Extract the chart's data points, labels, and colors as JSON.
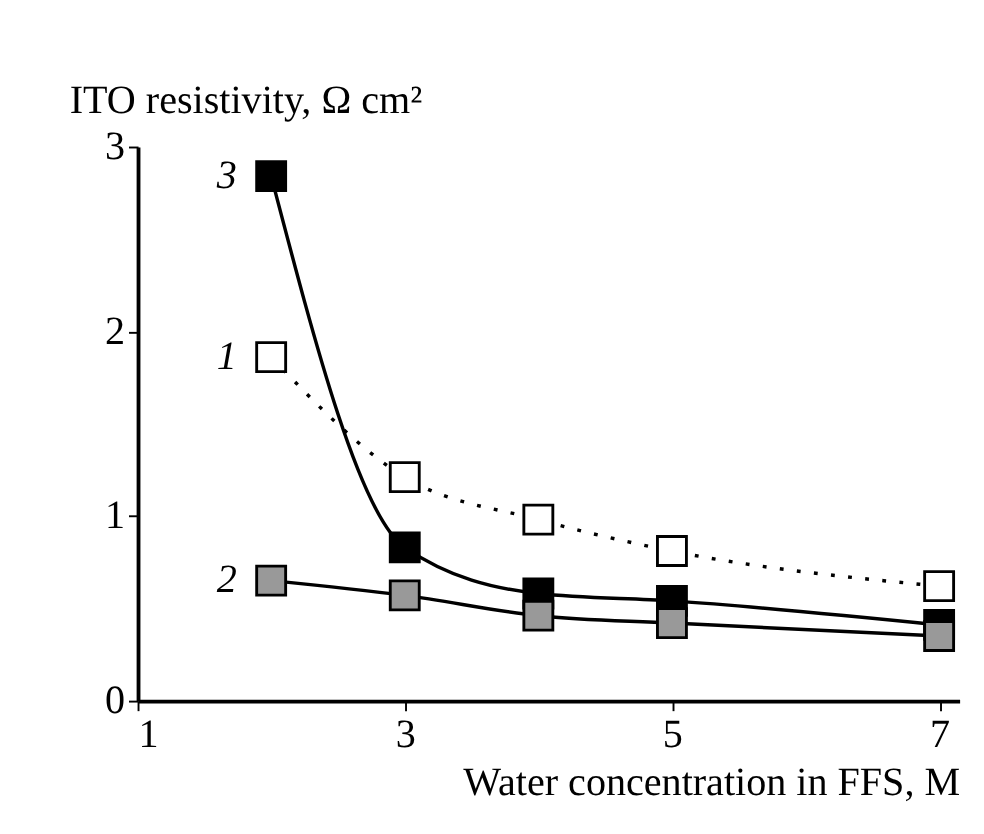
{
  "chart_data": {
    "type": "line",
    "xlabel": "Water concentration in FFS, M",
    "ylabel": "ITO resistivity, Ω cm²",
    "x": [
      2,
      3,
      4,
      5,
      7
    ],
    "xlim": [
      1,
      7.15
    ],
    "xticks": [
      1,
      3,
      5,
      7
    ],
    "ylim": [
      0,
      3
    ],
    "yticks": [
      0,
      1,
      2,
      3
    ],
    "grid": false,
    "legend": false,
    "marker": "square",
    "series": [
      {
        "name": "1",
        "color": "#ffffff",
        "line_style": "dotted",
        "values": [
          1.86,
          1.21,
          0.98,
          0.81,
          0.62
        ]
      },
      {
        "name": "2",
        "color": "#999999",
        "line_style": "solid",
        "values": [
          0.65,
          0.57,
          0.46,
          0.42,
          0.35
        ]
      },
      {
        "name": "3",
        "color": "#000000",
        "line_style": "solid",
        "values": [
          2.84,
          0.83,
          0.58,
          0.54,
          0.41
        ]
      }
    ]
  }
}
